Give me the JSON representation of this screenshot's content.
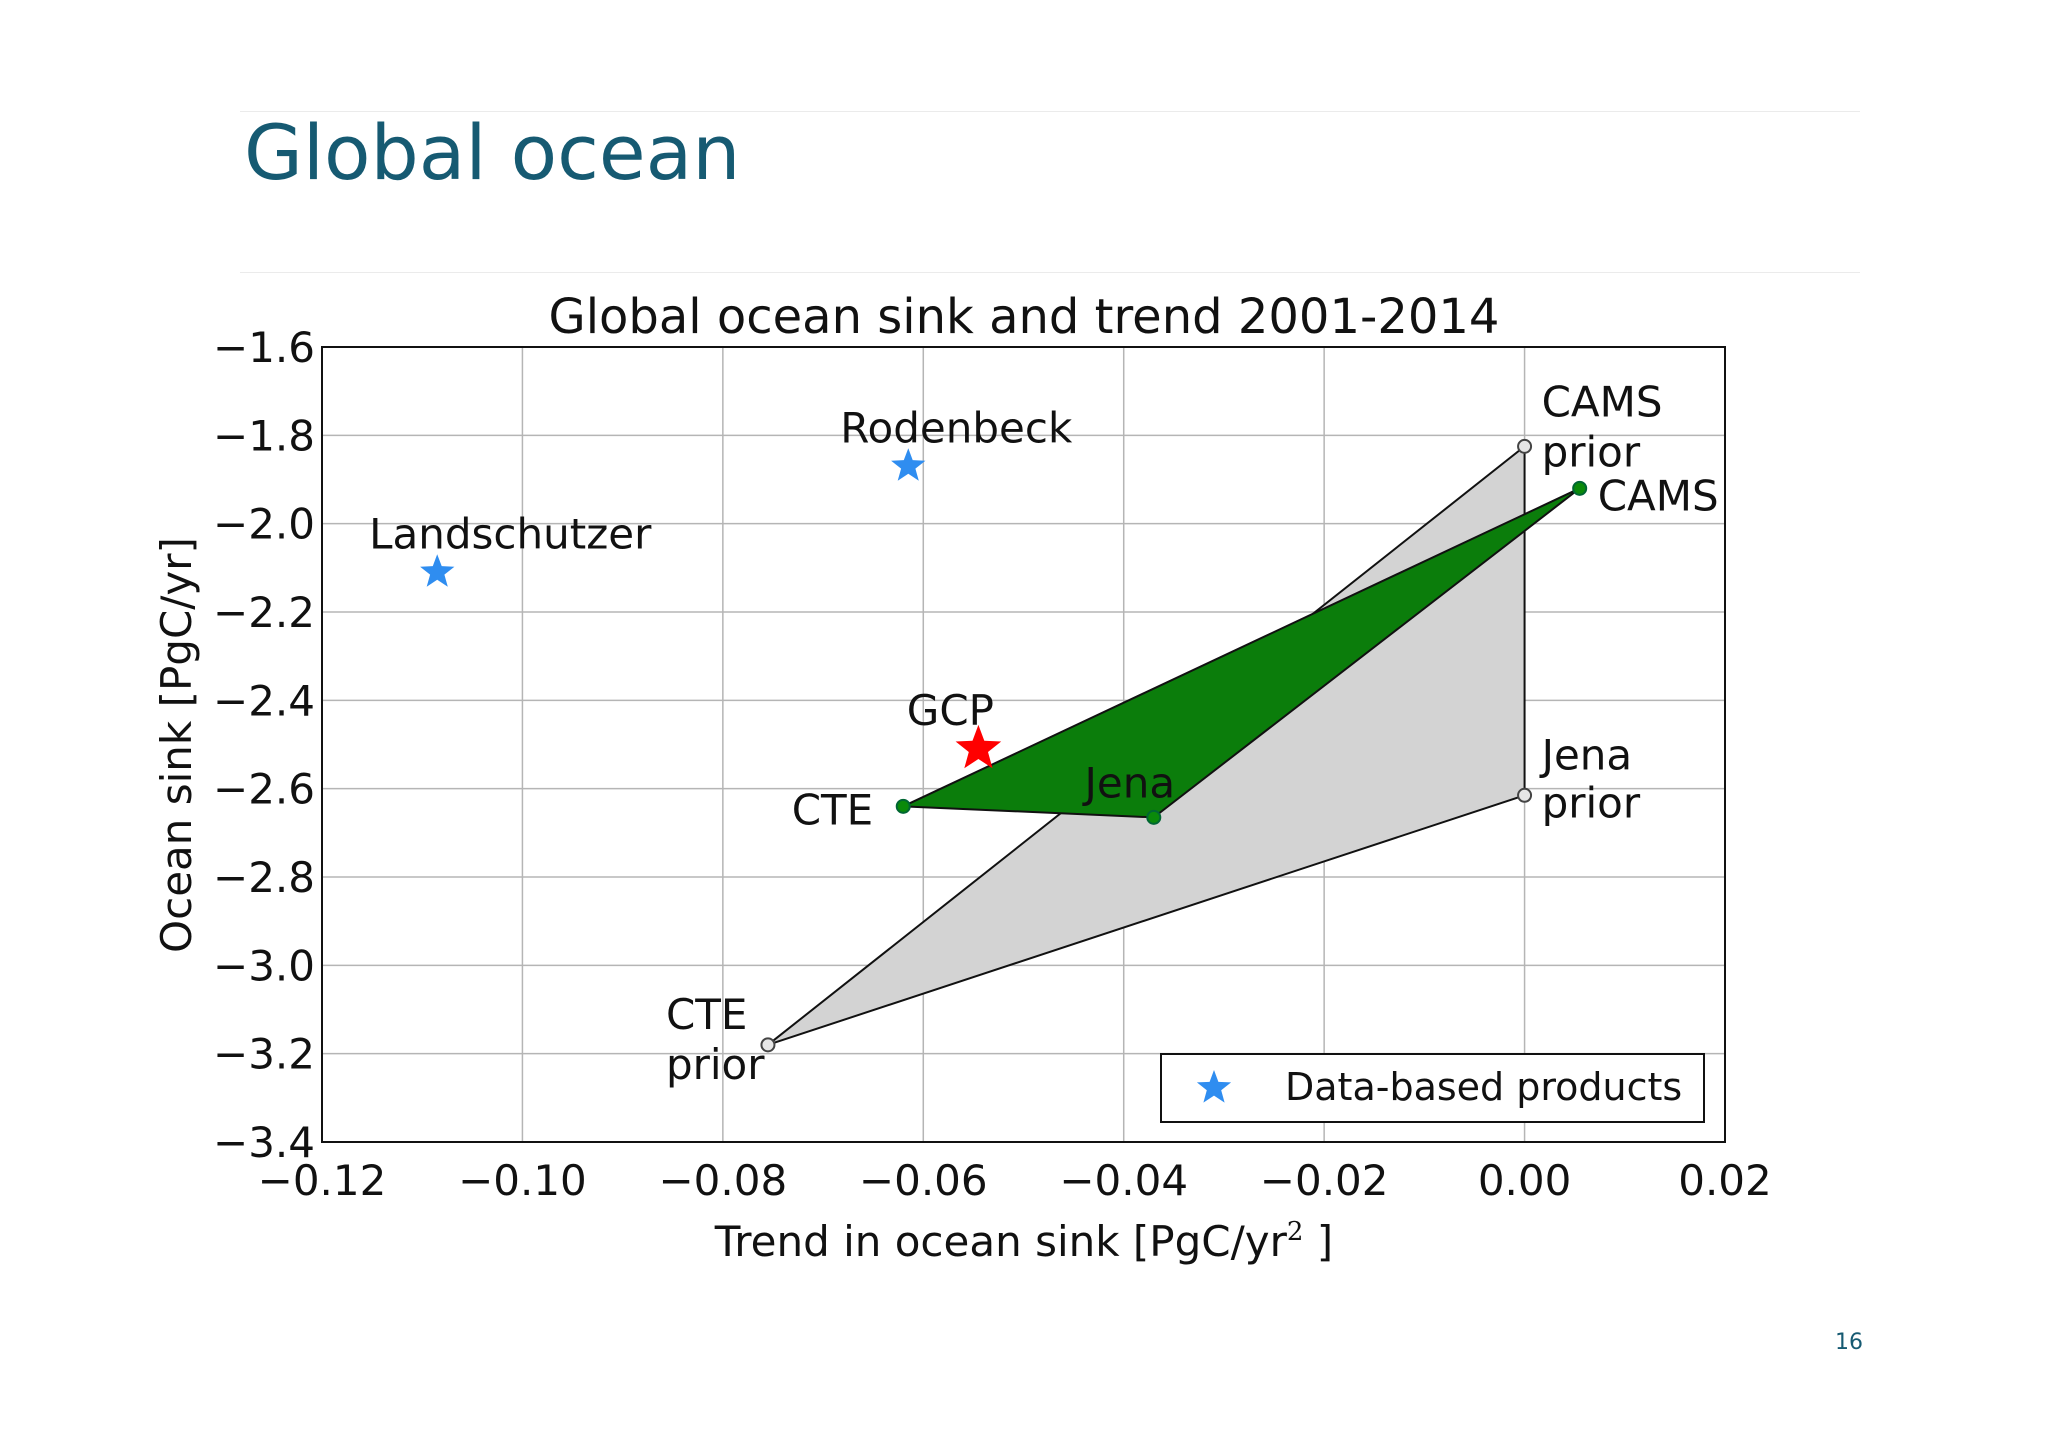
{
  "slide": {
    "title": "Global ocean",
    "page_number": "16"
  },
  "colors": {
    "title": "#165a72",
    "green_polygon": "#0b7d0b",
    "prior_polygon": "#d3d3d3",
    "data_based_star": "#2f8df0",
    "gcp_star": "#ff0000"
  },
  "chart_data": {
    "type": "scatter",
    "title": "Global ocean sink and trend 2001-2014",
    "xlabel": "Trend in ocean sink [PgC/yr",
    "xlabel_sup": "2",
    "xlabel_suffix": " ]",
    "ylabel": "Ocean sink [PgC/yr]",
    "xlim": [
      -0.12,
      0.02
    ],
    "ylim": [
      -3.4,
      -1.6
    ],
    "xticks": [
      -0.12,
      -0.1,
      -0.08,
      -0.06,
      -0.04,
      -0.02,
      0.0,
      0.02
    ],
    "xtick_labels": [
      "−0.12",
      "−0.10",
      "−0.08",
      "−0.06",
      "−0.04",
      "−0.02",
      "0.00",
      "0.02"
    ],
    "yticks": [
      -1.6,
      -1.8,
      -2.0,
      -2.2,
      -2.4,
      -2.6,
      -2.8,
      -3.0,
      -3.2,
      -3.4
    ],
    "ytick_labels": [
      "−1.6",
      "−1.8",
      "−2.0",
      "−2.2",
      "−2.4",
      "−2.6",
      "−2.8",
      "−3.0",
      "−3.2",
      "−3.4"
    ],
    "grid": true,
    "legend": {
      "position": "lower-right",
      "entries": [
        "Data-based products"
      ]
    },
    "data_based_products": [
      {
        "label": "Rodenbeck",
        "x": -0.0615,
        "y": -1.87
      },
      {
        "label": "Landschutzer",
        "x": -0.1085,
        "y": -2.11
      }
    ],
    "gcp": {
      "label": "GCP",
      "x": -0.0545,
      "y": -2.51
    },
    "inversions": [
      {
        "label": "CTE",
        "x": -0.062,
        "y": -2.64
      },
      {
        "label": "Jena",
        "x": -0.037,
        "y": -2.665
      },
      {
        "label": "CAMS",
        "x": 0.0055,
        "y": -1.92
      }
    ],
    "priors": [
      {
        "label_line1": "CTE",
        "label_line2": "prior",
        "x": -0.0755,
        "y": -3.18
      },
      {
        "label_line1": "Jena",
        "label_line2": "prior",
        "x": 0.0,
        "y": -2.615
      },
      {
        "label_line1": "CAMS",
        "label_line2": "prior",
        "x": 0.0,
        "y": -1.825
      }
    ]
  }
}
